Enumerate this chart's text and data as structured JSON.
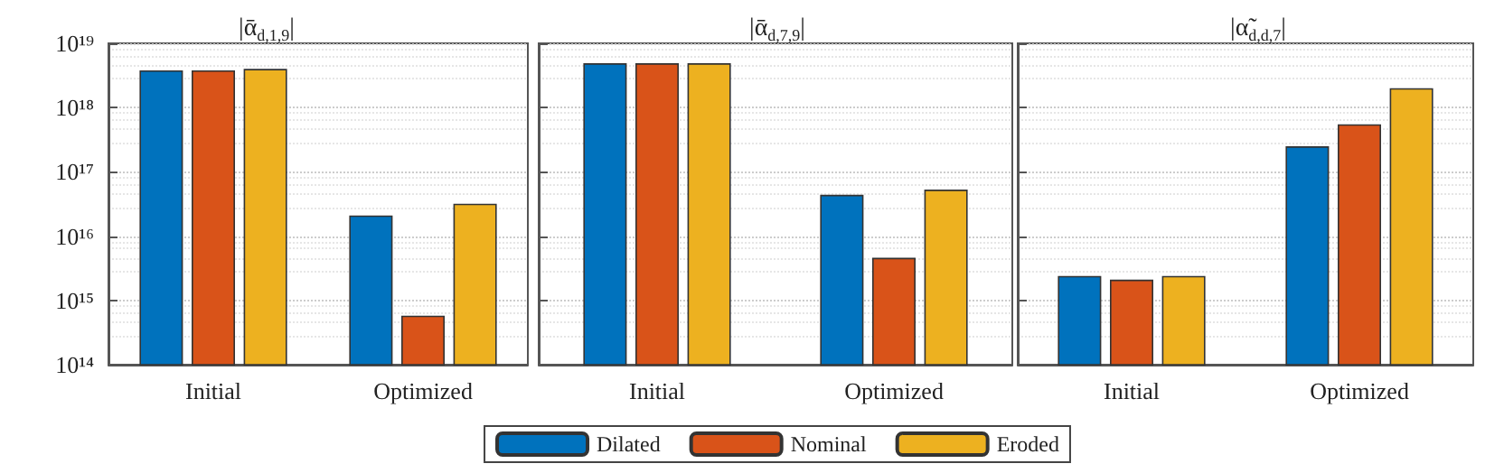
{
  "chart_data": [
    {
      "type": "bar",
      "title": "|ᾱ$_{d,1,9}$|",
      "categories": [
        "Initial",
        "Optimized"
      ],
      "log": true,
      "grid": "y",
      "legend": false,
      "ylim": [
        100000000000000.0,
        1e+19
      ],
      "yticks": [
        {
          "value": 100000000000000.0,
          "label": "10¹⁴"
        },
        {
          "value": 1000000000000000.0,
          "label": "10¹⁵"
        },
        {
          "value": 1e+16,
          "label": "10¹⁶"
        },
        {
          "value": 1e+17,
          "label": "10¹⁷"
        },
        {
          "value": 1e+18,
          "label": "10¹⁸"
        },
        {
          "value": 1e+19,
          "label": "10¹⁹"
        }
      ],
      "series": [
        {
          "color": "#0072bd",
          "values": [
            3.8e+18,
            2.1e+16
          ]
        },
        {
          "color": "#d95319",
          "values": [
            3.8e+18,
            580000000000000.0
          ]
        },
        {
          "color": "#edb120",
          "values": [
            4e+18,
            3.2e+16
          ]
        }
      ]
    },
    {
      "type": "bar",
      "title": "|ᾱ$_{d,7,9}$|",
      "categories": [
        "Initial",
        "Optimized"
      ],
      "log": true,
      "grid": "y",
      "legend": "bottom",
      "tick_labels": "x",
      "ylim": [
        100000000000000.0,
        1e+19
      ],
      "yticks": [
        {
          "value": 100000000000000.0,
          "label": null
        },
        {
          "value": 1000000000000000.0,
          "label": null
        },
        {
          "value": 1e+16,
          "label": null
        },
        {
          "value": 1e+17,
          "label": null
        },
        {
          "value": 1e+18,
          "label": null
        },
        {
          "value": 1e+19,
          "label": null
        }
      ],
      "series": [
        {
          "name": "Dilated",
          "color": "#0072bd",
          "values": [
            4.9e+18,
            4.4e+16
          ]
        },
        {
          "name": "Nominal",
          "color": "#d95319",
          "values": [
            4.9e+18,
            4600000000000000.0
          ]
        },
        {
          "name": "Eroded",
          "color": "#edb120",
          "values": [
            4.9e+18,
            5.3e+16
          ]
        }
      ]
    },
    {
      "type": "bar",
      "title": "|α̃$_{d,d,7}$|",
      "categories": [
        "Initial",
        "Optimized"
      ],
      "log": true,
      "grid": "y",
      "legend": false,
      "tick_labels": "x",
      "ylim": [
        100000000000000.0,
        1e+19
      ],
      "yticks": [
        {
          "value": 100000000000000.0,
          "label": null
        },
        {
          "value": 1000000000000000.0,
          "label": null
        },
        {
          "value": 1e+16,
          "label": null
        },
        {
          "value": 1e+17,
          "label": null
        },
        {
          "value": 1e+18,
          "label": null
        },
        {
          "value": 1e+19,
          "label": null
        }
      ],
      "series": [
        {
          "color": "#0072bd",
          "values": [
            2400000000000000.0,
            2.5e+17
          ]
        },
        {
          "color": "#d95319",
          "values": [
            2100000000000000.0,
            5.5e+17
          ]
        },
        {
          "color": "#edb120",
          "values": [
            2400000000000000.0,
            2e+18
          ]
        }
      ]
    }
  ]
}
